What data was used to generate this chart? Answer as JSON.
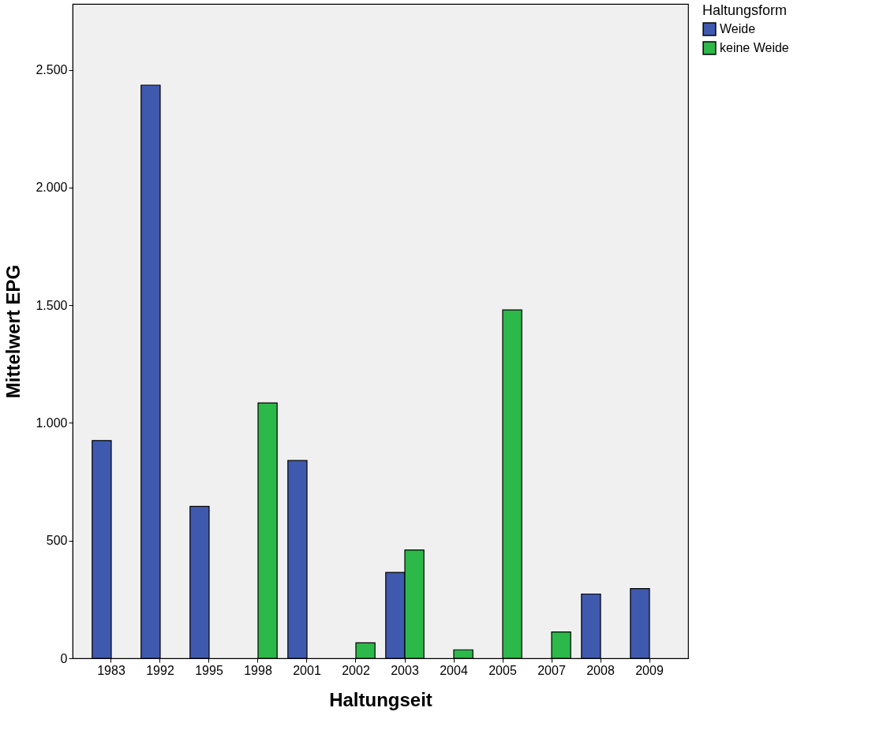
{
  "chart_data": {
    "type": "bar",
    "xlabel": "Haltungseit",
    "ylabel": "Mittelwert EPG",
    "legend_title": "Haltungsform",
    "categories": [
      "1983",
      "1992",
      "1995",
      "1998",
      "2001",
      "2002",
      "2003",
      "2004",
      "2005",
      "2007",
      "2008",
      "2009"
    ],
    "series": [
      {
        "name": "Weide",
        "color": "#3f59ae",
        "values": [
          925,
          2435,
          645,
          null,
          840,
          null,
          365,
          null,
          null,
          null,
          273,
          296
        ]
      },
      {
        "name": "keine Weide",
        "color": "#2db84a",
        "values": [
          null,
          null,
          null,
          1085,
          null,
          66,
          460,
          36,
          1480,
          112,
          null,
          null
        ]
      }
    ],
    "ylim": [
      0,
      2780
    ],
    "yticks": [
      0,
      500,
      {
        "value": 1000,
        "label": "1.000"
      },
      {
        "value": 1500,
        "label": "1.500"
      },
      {
        "value": 2000,
        "label": "2.000"
      },
      {
        "value": 2500,
        "label": "2.500"
      }
    ],
    "grid": false,
    "legend": "top right"
  }
}
